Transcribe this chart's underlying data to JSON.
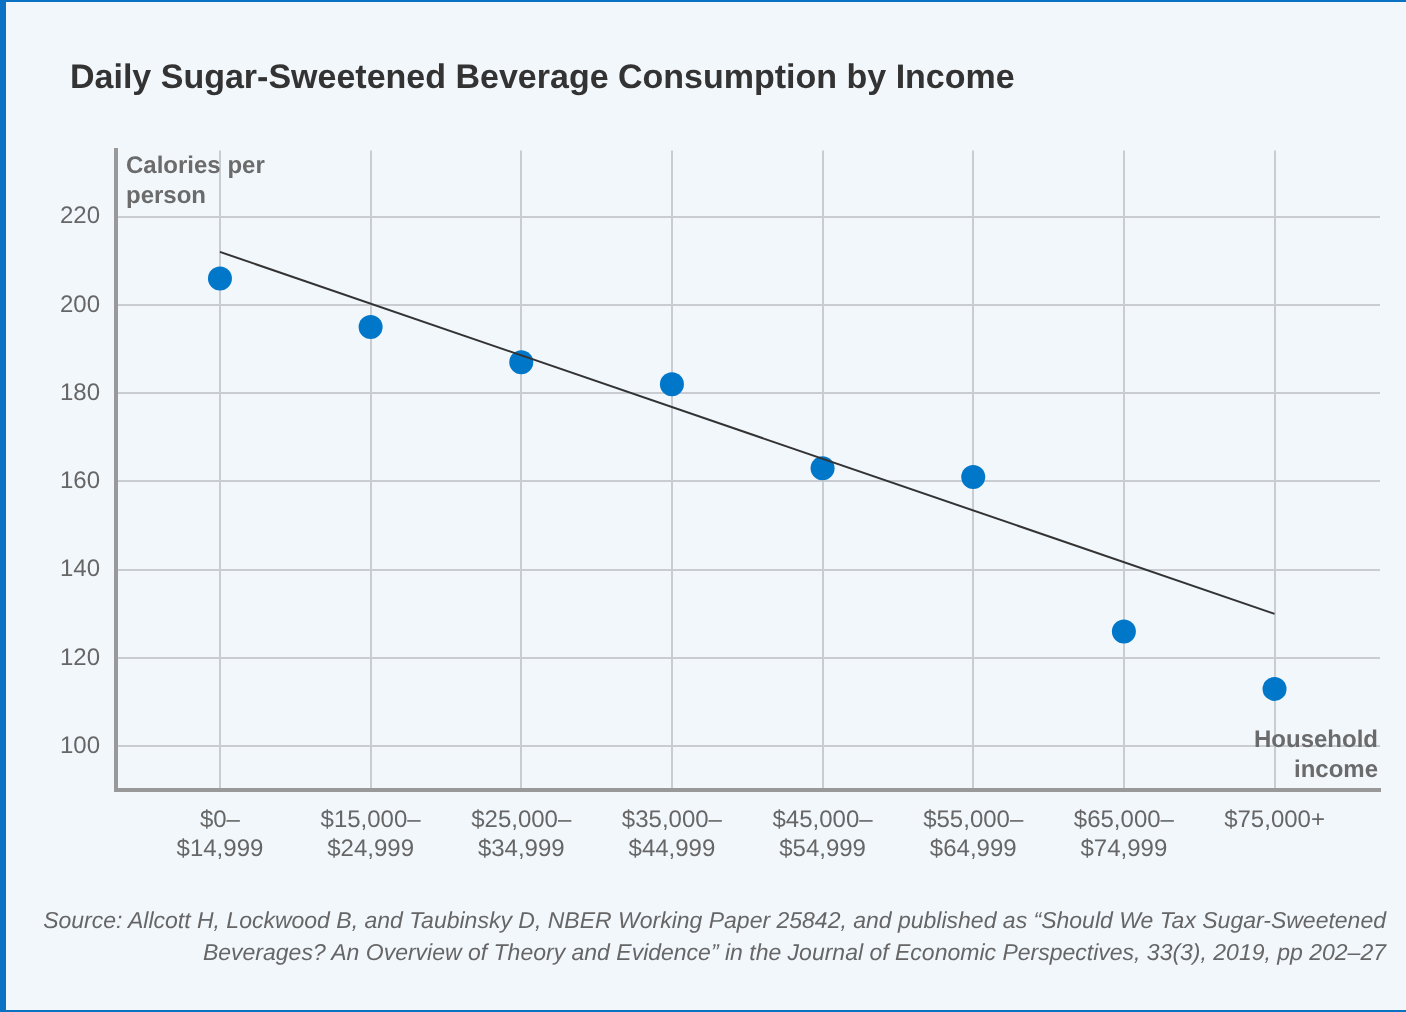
{
  "chart_data": {
    "type": "scatter",
    "title": "Daily Sugar-Sweetened Beverage Consumption by Income",
    "ylabel": "Calories per person",
    "xlabel": "Household income",
    "categories": [
      "$0–$14,999",
      "$15,000–$24,999",
      "$25,000–$34,999",
      "$35,000–$44,999",
      "$45,000–$54,999",
      "$55,000–$64,999",
      "$65,000–$74,999",
      "$75,000+"
    ],
    "series": [
      {
        "type": "scatter",
        "color": "#0077c8",
        "marker": "circle",
        "values": [
          206,
          195,
          187,
          182,
          163,
          161,
          126,
          113
        ]
      },
      {
        "type": "line",
        "color": "#333333",
        "marker": "none",
        "x": [
          "$0–$14,999",
          "$75,000+"
        ],
        "values": [
          212,
          130
        ]
      }
    ],
    "ylim": [
      90,
      235
    ],
    "yticks": [
      100,
      120,
      140,
      160,
      180,
      200,
      220
    ],
    "grid": true,
    "legend": false,
    "annotations": [
      "Source: Allcott H, Lockwood B, and Taubinsky D, NBER Working Paper 25842, and published as “Should We Tax Sugar-Sweetened Beverages? An Overview of Theory and Evidence” in the Journal of Economic Perspectives, 33(3), 2019, pp 202–27"
    ]
  }
}
